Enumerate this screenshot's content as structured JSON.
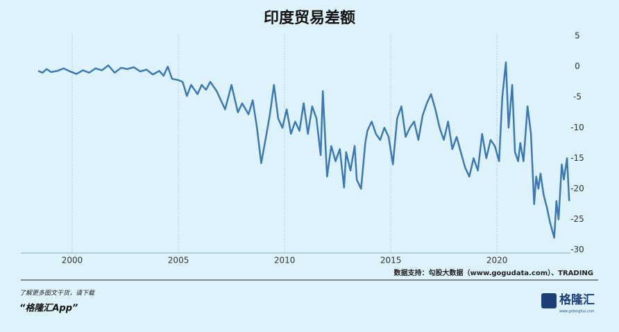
{
  "chart_data": {
    "type": "line",
    "title": "印度贸易差额",
    "source": "数据支持：勾股大数据（www.gogudata.com）、TRADING",
    "footer_note": "了解更多图文干货，请下载",
    "footer_app": "“格隆汇App”",
    "logo": "格隆汇",
    "logo_url": "www.gelonghui.com",
    "color": "#3b78b4",
    "grid": true,
    "xlim": [
      1997.58,
      2023.46
    ],
    "ylim": [
      -30.5,
      5
    ],
    "xticks": [
      2000,
      2005,
      2010,
      2015,
      2020
    ],
    "yticks": [
      5,
      0,
      -5,
      -10,
      -15,
      -20,
      -25,
      -30
    ],
    "x": [
      1998.4,
      1998.6,
      1998.8,
      1999.0,
      1999.3,
      1999.6,
      1999.9,
      2000.2,
      2000.5,
      2000.8,
      2001.1,
      2001.4,
      2001.7,
      2002.0,
      2002.3,
      2002.6,
      2002.9,
      2003.2,
      2003.5,
      2003.8,
      2004.1,
      2004.3,
      2004.5,
      2004.7,
      2005.0,
      2005.2,
      2005.4,
      2005.6,
      2005.9,
      2006.1,
      2006.3,
      2006.5,
      2006.8,
      2007.0,
      2007.2,
      2007.5,
      2007.8,
      2008.0,
      2008.3,
      2008.5,
      2008.7,
      2008.9,
      2009.1,
      2009.3,
      2009.5,
      2009.7,
      2009.9,
      2010.1,
      2010.3,
      2010.5,
      2010.7,
      2010.9,
      2011.1,
      2011.3,
      2011.5,
      2011.7,
      2011.8,
      2012.0,
      2012.2,
      2012.4,
      2012.6,
      2012.8,
      2012.9,
      2013.1,
      2013.3,
      2013.4,
      2013.6,
      2013.8,
      2013.9,
      2014.1,
      2014.3,
      2014.5,
      2014.7,
      2014.9,
      2015.1,
      2015.3,
      2015.5,
      2015.7,
      2015.9,
      2016.1,
      2016.3,
      2016.5,
      2016.7,
      2016.9,
      2017.1,
      2017.3,
      2017.5,
      2017.7,
      2017.9,
      2018.1,
      2018.3,
      2018.5,
      2018.7,
      2018.9,
      2019.1,
      2019.3,
      2019.5,
      2019.7,
      2019.9,
      2020.1,
      2020.25,
      2020.42,
      2020.55,
      2020.72,
      2020.85,
      2021.0,
      2021.1,
      2021.25,
      2021.44,
      2021.6,
      2021.75,
      2021.85,
      2021.95,
      2022.05,
      2022.2,
      2022.35,
      2022.5,
      2022.7,
      2022.8,
      2022.9,
      2023.05,
      2023.15,
      2023.3,
      2023.4
    ],
    "values": [
      -0.7,
      -1.0,
      -0.4,
      -0.9,
      -0.7,
      -0.3,
      -0.8,
      -1.2,
      -0.6,
      -1.0,
      -0.3,
      -0.6,
      0.2,
      -1.0,
      -0.2,
      -0.4,
      -0.1,
      -0.8,
      -0.5,
      -1.3,
      -0.7,
      -1.5,
      0.0,
      -2.0,
      -2.2,
      -2.5,
      -4.8,
      -3.0,
      -4.5,
      -3.0,
      -3.8,
      -2.5,
      -4.0,
      -5.5,
      -7.0,
      -3.0,
      -7.5,
      -6.0,
      -7.8,
      -5.5,
      -10.0,
      -15.8,
      -12.0,
      -8.0,
      -3.0,
      -8.5,
      -10.0,
      -7.0,
      -11.0,
      -9.0,
      -10.5,
      -6.0,
      -11.0,
      -6.5,
      -8.5,
      -14.5,
      -4.0,
      -18.0,
      -13.0,
      -15.5,
      -13.5,
      -19.8,
      -14.0,
      -17.0,
      -13.0,
      -18.5,
      -20.0,
      -12.5,
      -10.5,
      -9.0,
      -11.0,
      -12.0,
      -10.0,
      -11.5,
      -16.0,
      -8.5,
      -6.5,
      -11.5,
      -10.0,
      -9.0,
      -12.0,
      -8.0,
      -6.0,
      -4.5,
      -7.0,
      -10.0,
      -12.0,
      -9.0,
      -13.5,
      -11.5,
      -14.0,
      -16.5,
      -18.0,
      -15.0,
      -17.0,
      -11.0,
      -15.0,
      -12.0,
      -13.0,
      -15.5,
      -5.0,
      0.7,
      -10.0,
      -3.0,
      -14.0,
      -15.5,
      -12.5,
      -15.5,
      -6.5,
      -11.0,
      -22.5,
      -18.0,
      -20.0,
      -17.5,
      -21.0,
      -23.0,
      -25.5,
      -28.0,
      -22.0,
      -25.0,
      -16.0,
      -18.5,
      -15.0,
      -22.0
    ]
  }
}
